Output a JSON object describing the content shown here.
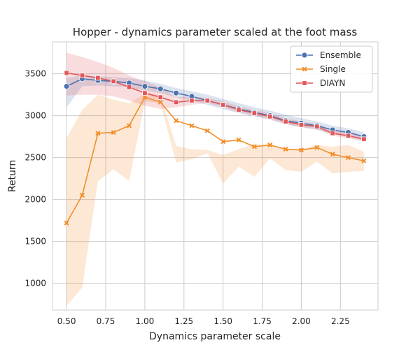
{
  "chart_data": {
    "type": "line",
    "title": "Hopper - dynamics parameter scaled at the foot mass",
    "xlabel": "Dynamics parameter scale",
    "ylabel": "Return",
    "xlim": [
      0.41,
      2.49
    ],
    "ylim": [
      680,
      3880
    ],
    "xticks": [
      0.5,
      0.75,
      1.0,
      1.25,
      1.5,
      1.75,
      2.0,
      2.25
    ],
    "xtick_labels": [
      "0.50",
      "0.75",
      "1.00",
      "1.25",
      "1.50",
      "1.75",
      "2.00",
      "2.25"
    ],
    "yticks": [
      1000,
      1500,
      2000,
      2500,
      3000,
      3500
    ],
    "ytick_labels": [
      "1000",
      "1500",
      "2000",
      "2500",
      "3000",
      "3500"
    ],
    "grid": true,
    "legend_position": "top-right",
    "x": [
      0.5,
      0.6,
      0.7,
      0.8,
      0.9,
      1.0,
      1.1,
      1.2,
      1.3,
      1.4,
      1.5,
      1.6,
      1.7,
      1.8,
      1.9,
      2.0,
      2.1,
      2.2,
      2.3,
      2.4
    ],
    "series": [
      {
        "name": "Ensemble",
        "color": "#4c72b0",
        "marker": "circle",
        "values": [
          3350,
          3440,
          3420,
          3410,
          3390,
          3350,
          3320,
          3270,
          3230,
          3180,
          3130,
          3080,
          3040,
          3000,
          2940,
          2910,
          2880,
          2830,
          2800,
          2750
        ],
        "lower": [
          3100,
          3350,
          3360,
          3350,
          3340,
          3300,
          3270,
          3220,
          3180,
          3130,
          3080,
          3030,
          2990,
          2950,
          2900,
          2860,
          2830,
          2780,
          2750,
          2700
        ],
        "upper": [
          3450,
          3480,
          3470,
          3460,
          3450,
          3420,
          3380,
          3330,
          3290,
          3250,
          3200,
          3150,
          3100,
          3060,
          3010,
          2970,
          2930,
          2880,
          2850,
          2800
        ]
      },
      {
        "name": "Single",
        "color": "#f28e2b",
        "marker": "x",
        "values": [
          1720,
          2050,
          2790,
          2800,
          2880,
          3220,
          3160,
          2940,
          2880,
          2820,
          2690,
          2710,
          2630,
          2650,
          2600,
          2590,
          2620,
          2540,
          2500,
          2460
        ],
        "lower": [
          730,
          950,
          2220,
          2360,
          2220,
          3170,
          3150,
          2440,
          2480,
          2550,
          2190,
          2390,
          2270,
          2490,
          2350,
          2330,
          2450,
          2310,
          2330,
          2340
        ],
        "upper": [
          2730,
          3070,
          3250,
          3190,
          3150,
          3260,
          3250,
          2640,
          2600,
          2590,
          2530,
          2600,
          2660,
          2650,
          2590,
          2600,
          2650,
          2630,
          2650,
          2570
        ]
      },
      {
        "name": "DIAYN",
        "color": "#e15759",
        "marker": "square",
        "values": [
          3510,
          3480,
          3450,
          3410,
          3340,
          3270,
          3220,
          3160,
          3180,
          3180,
          3130,
          3070,
          3030,
          2990,
          2930,
          2890,
          2870,
          2790,
          2760,
          2720
        ],
        "lower": [
          3240,
          3250,
          3250,
          3230,
          3180,
          3120,
          3080,
          3100,
          3130,
          3150,
          3100,
          3040,
          3000,
          2960,
          2900,
          2860,
          2840,
          2760,
          2730,
          2690
        ],
        "upper": [
          3750,
          3700,
          3640,
          3570,
          3480,
          3410,
          3340,
          3220,
          3230,
          3210,
          3170,
          3110,
          3070,
          3030,
          2970,
          2930,
          2900,
          2830,
          2800,
          2760
        ]
      }
    ]
  }
}
